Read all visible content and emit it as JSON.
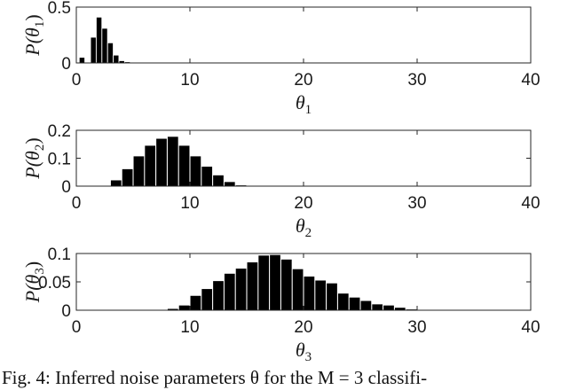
{
  "caption": "Fig. 4: Inferred noise parameters θ for the M = 3 classifi-",
  "chart_data": [
    {
      "type": "bar",
      "xlabel": "θ1",
      "ylabel": "P(θ1)",
      "xlim": [
        0,
        40
      ],
      "ylim": [
        0,
        0.5
      ],
      "xticks": [
        "0",
        "10",
        "20",
        "30",
        "40"
      ],
      "yticks": [
        "0",
        "0.5"
      ],
      "x": [
        0.5,
        1.5,
        2.0,
        2.5,
        3.0,
        3.5,
        4.0,
        4.5,
        5.0
      ],
      "values": [
        0.05,
        0.23,
        0.41,
        0.31,
        0.18,
        0.07,
        0.02,
        0.01,
        0.005
      ]
    },
    {
      "type": "bar",
      "xlabel": "θ2",
      "ylabel": "P(θ2)",
      "xlim": [
        0,
        40
      ],
      "ylim": [
        0,
        0.2
      ],
      "xticks": [
        "0",
        "10",
        "20",
        "30",
        "40"
      ],
      "yticks": [
        "0",
        "0.1",
        "0.2"
      ],
      "x": [
        3.5,
        4.5,
        5.5,
        6.5,
        7.5,
        8.5,
        9.5,
        10.5,
        11.5,
        12.5,
        13.5,
        14.5
      ],
      "values": [
        0.022,
        0.062,
        0.108,
        0.146,
        0.171,
        0.178,
        0.146,
        0.108,
        0.071,
        0.04,
        0.016,
        0.004
      ]
    },
    {
      "type": "bar",
      "xlabel": "θ3",
      "ylabel": "P(θ3)",
      "xlim": [
        0,
        40
      ],
      "ylim": [
        0,
        0.1
      ],
      "xticks": [
        "0",
        "10",
        "20",
        "30",
        "40"
      ],
      "yticks": [
        "0",
        "0.05",
        "0.1"
      ],
      "x": [
        7.5,
        8.5,
        9.5,
        10.5,
        11.5,
        12.5,
        13.5,
        14.5,
        15.5,
        16.5,
        17.5,
        18.5,
        19.5,
        20.5,
        21.5,
        22.5,
        23.5,
        24.5,
        25.5,
        26.5,
        27.5,
        28.5,
        29.5
      ],
      "values": [
        0.001,
        0.003,
        0.009,
        0.026,
        0.038,
        0.052,
        0.065,
        0.074,
        0.085,
        0.097,
        0.098,
        0.09,
        0.073,
        0.06,
        0.053,
        0.048,
        0.03,
        0.023,
        0.017,
        0.011,
        0.009,
        0.005,
        0.002
      ]
    }
  ]
}
